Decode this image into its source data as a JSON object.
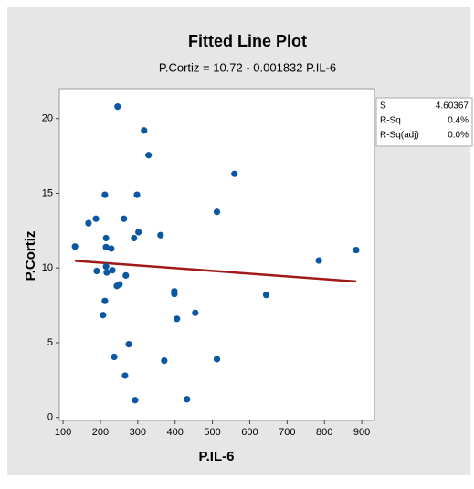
{
  "chart_data": {
    "type": "scatter",
    "title": "Fitted Line Plot",
    "subtitle": "P.Cortiz = 10.72 - 0.001832 P.IL-6",
    "x_label": "P.IL-6",
    "y_label": "P.Cortiz",
    "xlim": [
      90,
      934
    ],
    "ylim": [
      -0.2,
      22
    ],
    "xticks": [
      100,
      200,
      300,
      400,
      500,
      600,
      700,
      800,
      900
    ],
    "yticks": [
      0,
      5,
      10,
      15,
      20
    ],
    "series": [
      {
        "color": "#0b57a4",
        "x": [
          132,
          168,
          188,
          190,
          212,
          215,
          215,
          207,
          212,
          215,
          217,
          229,
          232,
          237,
          244,
          251,
          246,
          263,
          266,
          268,
          276,
          290,
          298,
          302,
          293,
          317,
          329,
          361,
          371,
          398,
          398,
          405,
          432,
          454,
          512,
          512,
          559,
          644,
          785,
          885
        ],
        "values": [
          11.44,
          13.0,
          13.3,
          9.8,
          14.9,
          12.0,
          11.4,
          6.85,
          7.8,
          10.1,
          9.7,
          11.3,
          9.85,
          4.05,
          8.8,
          8.9,
          20.8,
          13.3,
          2.8,
          9.5,
          4.9,
          12.0,
          14.9,
          12.4,
          1.16,
          19.2,
          17.55,
          12.2,
          3.8,
          8.44,
          8.26,
          6.6,
          1.22,
          7.0,
          3.9,
          13.76,
          16.3,
          8.2,
          10.5,
          11.2
        ]
      }
    ],
    "fit_line": {
      "color": "#a11818",
      "x": [
        132,
        885
      ],
      "values": [
        10.48,
        9.1
      ]
    },
    "stats": [
      [
        "S",
        "4.60367"
      ],
      [
        "R-Sq",
        "0.4%"
      ],
      [
        "R-Sq(adj)",
        "0.0%"
      ]
    ]
  }
}
